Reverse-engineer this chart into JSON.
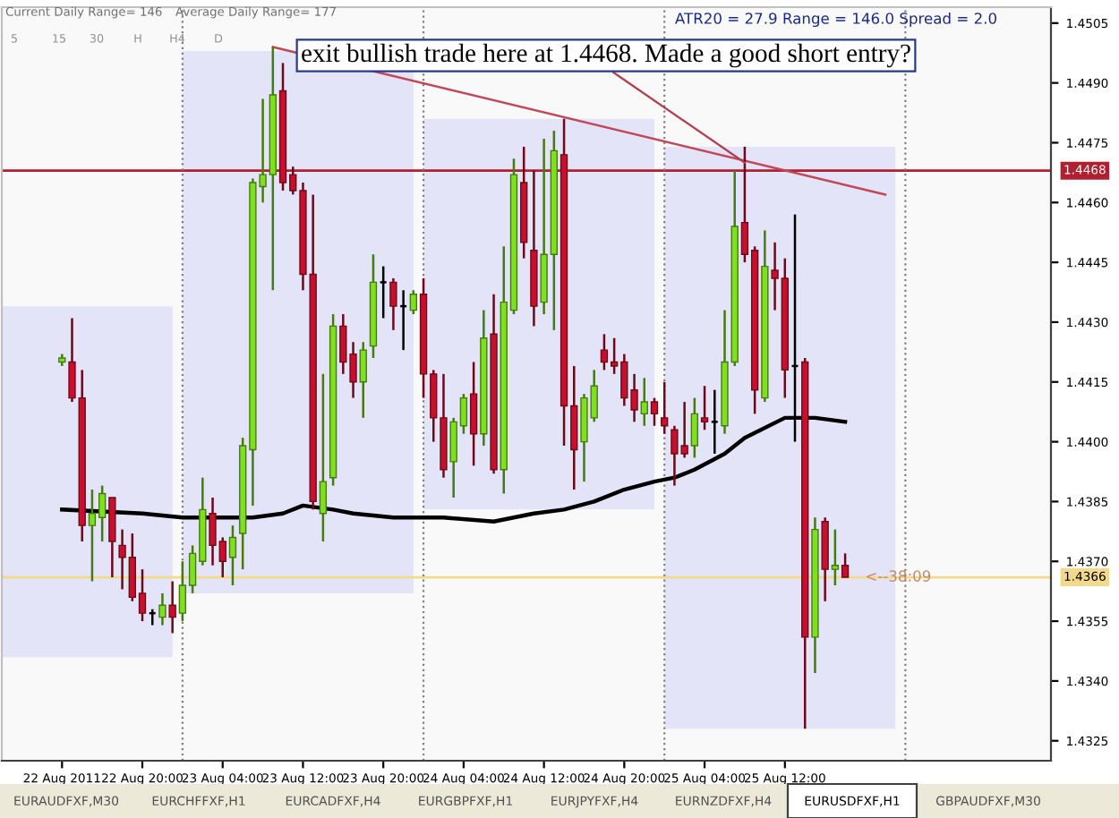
{
  "chart_data": {
    "type": "candlestick",
    "xlim": [
      "2011-08-22T06:00",
      "2011-08-26T14:30"
    ],
    "ylim": [
      1.432,
      1.4509
    ],
    "xticks": [
      {
        "value": "2011-08-22T12:00",
        "label": "22 Aug 2011"
      },
      {
        "value": "2011-08-22T20:00",
        "label": "22 Aug 20:00"
      },
      {
        "value": "2011-08-23T04:00",
        "label": "23 Aug 04:00"
      },
      {
        "value": "2011-08-23T12:00",
        "label": "23 Aug 12:00"
      },
      {
        "value": "2011-08-23T20:00",
        "label": "23 Aug 20:00"
      },
      {
        "value": "2011-08-24T04:00",
        "label": "24 Aug 04:00"
      },
      {
        "value": "2011-08-24T12:00",
        "label": "24 Aug 12:00"
      },
      {
        "value": "2011-08-24T20:00",
        "label": "24 Aug 20:00"
      },
      {
        "value": "2011-08-25T04:00",
        "label": "25 Aug 04:00"
      },
      {
        "value": "2011-08-25T12:00",
        "label": "25 Aug 12:00"
      }
    ],
    "yticks": [
      1.4505,
      {
        "value": 1.449,
        "label": "1.4490"
      },
      1.4475,
      {
        "value": 1.446,
        "label": "1.4460"
      },
      1.4445,
      {
        "value": 1.443,
        "label": "1.4430"
      },
      1.4415,
      {
        "value": 1.44,
        "label": "1.4400"
      },
      1.4385,
      {
        "value": 1.437,
        "label": "1.4370"
      },
      1.4355,
      {
        "value": 1.434,
        "label": "1.4340"
      },
      1.4325
    ],
    "series": [
      {
        "type": "bar",
        "x": [
          "2011-08-22T11:30",
          "2011-08-23T11:30",
          "2011-08-24T11:30",
          "2011-08-25T11:30"
        ],
        "base": [
          1.4346,
          1.4362,
          1.4383,
          1.4328
        ],
        "values": [
          0.0088,
          0.0136,
          0.0098,
          0.0146
        ],
        "color": "#e4e4f8"
      },
      {
        "x": [
          "2011-08-22T12:00",
          "2011-08-22T13:00",
          "2011-08-22T14:00",
          "2011-08-22T15:00",
          "2011-08-22T16:00",
          "2011-08-22T17:00",
          "2011-08-22T18:00",
          "2011-08-22T19:00",
          "2011-08-22T20:00",
          "2011-08-22T21:00",
          "2011-08-22T22:00",
          "2011-08-22T23:00",
          "2011-08-23T00:00",
          "2011-08-23T01:00",
          "2011-08-23T02:00",
          "2011-08-23T03:00",
          "2011-08-23T04:00",
          "2011-08-23T05:00",
          "2011-08-23T06:00",
          "2011-08-23T07:00",
          "2011-08-23T08:00",
          "2011-08-23T09:00",
          "2011-08-23T10:00",
          "2011-08-23T11:00",
          "2011-08-23T12:00",
          "2011-08-23T13:00",
          "2011-08-23T14:00",
          "2011-08-23T15:00",
          "2011-08-23T16:00",
          "2011-08-23T17:00",
          "2011-08-23T18:00",
          "2011-08-23T19:00",
          "2011-08-23T20:00",
          "2011-08-23T21:00",
          "2011-08-23T22:00",
          "2011-08-23T23:00",
          "2011-08-24T00:00",
          "2011-08-24T01:00",
          "2011-08-24T02:00",
          "2011-08-24T03:00",
          "2011-08-24T04:00",
          "2011-08-24T05:00",
          "2011-08-24T06:00",
          "2011-08-24T07:00",
          "2011-08-24T08:00",
          "2011-08-24T09:00",
          "2011-08-24T10:00",
          "2011-08-24T11:00",
          "2011-08-24T12:00",
          "2011-08-24T13:00",
          "2011-08-24T14:00",
          "2011-08-24T15:00",
          "2011-08-24T16:00",
          "2011-08-24T17:00",
          "2011-08-24T18:00",
          "2011-08-24T19:00",
          "2011-08-24T20:00",
          "2011-08-24T21:00",
          "2011-08-24T22:00",
          "2011-08-24T23:00",
          "2011-08-25T00:00",
          "2011-08-25T01:00",
          "2011-08-25T02:00",
          "2011-08-25T03:00",
          "2011-08-25T04:00",
          "2011-08-25T05:00",
          "2011-08-25T06:00",
          "2011-08-25T07:00",
          "2011-08-25T08:00",
          "2011-08-25T09:00",
          "2011-08-25T10:00",
          "2011-08-25T11:00",
          "2011-08-25T12:00",
          "2011-08-25T13:00",
          "2011-08-25T14:00",
          "2011-08-25T15:00",
          "2011-08-25T16:00",
          "2011-08-25T17:00",
          "2011-08-25T18:00"
        ],
        "ohlc": [
          [
            1.442,
            1.4422,
            1.4419,
            1.4421
          ],
          [
            1.442,
            1.4431,
            1.441,
            1.4411
          ],
          [
            1.4411,
            1.4418,
            1.4375,
            1.4379
          ],
          [
            1.4379,
            1.4388,
            1.4365,
            1.4382
          ],
          [
            1.4381,
            1.4389,
            1.4375,
            1.4387
          ],
          [
            1.4386,
            1.4386,
            1.4366,
            1.4375
          ],
          [
            1.4374,
            1.4378,
            1.4363,
            1.4371
          ],
          [
            1.4371,
            1.4377,
            1.436,
            1.4361
          ],
          [
            1.4362,
            1.4368,
            1.4355,
            1.4357
          ],
          [
            1.4357,
            1.4358,
            1.4354,
            1.4357
          ],
          [
            1.4356,
            1.4362,
            1.4354,
            1.4359
          ],
          [
            1.4359,
            1.4365,
            1.4352,
            1.4356
          ],
          [
            1.4357,
            1.437,
            1.4355,
            1.4364
          ],
          [
            1.4364,
            1.4374,
            1.4362,
            1.4372
          ],
          [
            1.437,
            1.4391,
            1.4369,
            1.4383
          ],
          [
            1.4382,
            1.4386,
            1.4369,
            1.4374
          ],
          [
            1.4375,
            1.4376,
            1.4366,
            1.437
          ],
          [
            1.4371,
            1.4379,
            1.4364,
            1.4376
          ],
          [
            1.4377,
            1.4401,
            1.4368,
            1.4399
          ],
          [
            1.4398,
            1.4466,
            1.4384,
            1.4465
          ],
          [
            1.4464,
            1.4486,
            1.446,
            1.4467
          ],
          [
            1.4467,
            1.4499,
            1.4438,
            1.4487
          ],
          [
            1.4488,
            1.4495,
            1.4463,
            1.4465
          ],
          [
            1.4467,
            1.4469,
            1.4462,
            1.4463
          ],
          [
            1.4463,
            1.4465,
            1.4438,
            1.4442
          ],
          [
            1.4442,
            1.4462,
            1.4383,
            1.4385
          ],
          [
            1.4382,
            1.4417,
            1.4375,
            1.439
          ],
          [
            1.4391,
            1.4432,
            1.4389,
            1.4429
          ],
          [
            1.4429,
            1.4432,
            1.4417,
            1.442
          ],
          [
            1.4422,
            1.4425,
            1.4411,
            1.4415
          ],
          [
            1.4415,
            1.4425,
            1.4406,
            1.4423
          ],
          [
            1.4424,
            1.4447,
            1.4421,
            1.444
          ],
          [
            1.444,
            1.4444,
            1.4431,
            1.444
          ],
          [
            1.444,
            1.4441,
            1.4428,
            1.4434
          ],
          [
            1.4434,
            1.4438,
            1.4423,
            1.4434
          ],
          [
            1.4433,
            1.4438,
            1.4432,
            1.4437
          ],
          [
            1.4437,
            1.4441,
            1.4411,
            1.4417
          ],
          [
            1.4417,
            1.4418,
            1.44,
            1.4406
          ],
          [
            1.4406,
            1.4417,
            1.4391,
            1.4393
          ],
          [
            1.4395,
            1.4406,
            1.4386,
            1.4405
          ],
          [
            1.4404,
            1.4412,
            1.4402,
            1.4411
          ],
          [
            1.4412,
            1.442,
            1.4394,
            1.4402
          ],
          [
            1.4402,
            1.4433,
            1.4399,
            1.4426
          ],
          [
            1.4427,
            1.4437,
            1.4392,
            1.4393
          ],
          [
            1.4393,
            1.4449,
            1.4387,
            1.4435
          ],
          [
            1.4433,
            1.4471,
            1.4432,
            1.4467
          ],
          [
            1.4465,
            1.4474,
            1.4446,
            1.445
          ],
          [
            1.4448,
            1.4468,
            1.4429,
            1.4434
          ],
          [
            1.4435,
            1.4476,
            1.4432,
            1.4447
          ],
          [
            1.4447,
            1.4478,
            1.4428,
            1.4473
          ],
          [
            1.4472,
            1.4481,
            1.4399,
            1.4409
          ],
          [
            1.4409,
            1.4419,
            1.4388,
            1.4398
          ],
          [
            1.44,
            1.4412,
            1.439,
            1.4411
          ],
          [
            1.4406,
            1.4418,
            1.4405,
            1.4414
          ],
          [
            1.4423,
            1.4427,
            1.4418,
            1.442
          ],
          [
            1.442,
            1.4426,
            1.4417,
            1.4419
          ],
          [
            1.442,
            1.4422,
            1.4409,
            1.4411
          ],
          [
            1.4413,
            1.4417,
            1.4405,
            1.4408
          ],
          [
            1.4407,
            1.4416,
            1.4404,
            1.441
          ],
          [
            1.441,
            1.4411,
            1.4404,
            1.4407
          ],
          [
            1.4406,
            1.4415,
            1.4402,
            1.4404
          ],
          [
            1.4403,
            1.4404,
            1.4389,
            1.4397
          ],
          [
            1.4399,
            1.441,
            1.4396,
            1.4397
          ],
          [
            1.4399,
            1.4411,
            1.4396,
            1.4407
          ],
          [
            1.4406,
            1.4414,
            1.4403,
            1.4405
          ],
          [
            1.4405,
            1.4413,
            1.4397,
            1.4405
          ],
          [
            1.4404,
            1.4433,
            1.4402,
            1.442
          ],
          [
            1.442,
            1.4468,
            1.4419,
            1.4454
          ],
          [
            1.4455,
            1.4474,
            1.4445,
            1.4447
          ],
          [
            1.4448,
            1.4449,
            1.4407,
            1.4413
          ],
          [
            1.4411,
            1.4453,
            1.441,
            1.4444
          ],
          [
            1.4443,
            1.445,
            1.4433,
            1.4441
          ],
          [
            1.4441,
            1.4446,
            1.4411,
            1.4418
          ],
          [
            1.4419,
            1.4457,
            1.44,
            1.4419
          ],
          [
            1.442,
            1.4421,
            1.4328,
            1.4351
          ],
          [
            1.4351,
            1.4381,
            1.4342,
            1.4378
          ],
          [
            1.438,
            1.4381,
            1.436,
            1.4368
          ],
          [
            1.4368,
            1.4378,
            1.4364,
            1.4369
          ],
          [
            1.4369,
            1.4372,
            1.4366,
            1.4366
          ]
        ],
        "colors": [
          "#7fe01f",
          "#c8102e",
          "#c8102e",
          "#7fe01f",
          "#7fe01f",
          "#c8102e",
          "#c8102e",
          "#c8102e",
          "#c8102e",
          "#000000",
          "#7fe01f",
          "#c8102e",
          "#7fe01f",
          "#7fe01f",
          "#7fe01f",
          "#c8102e",
          "#c8102e",
          "#7fe01f",
          "#7fe01f",
          "#7fe01f",
          "#7fe01f",
          "#7fe01f",
          "#c8102e",
          "#c8102e",
          "#c8102e",
          "#c8102e",
          "#7fe01f",
          "#7fe01f",
          "#c8102e",
          "#c8102e",
          "#7fe01f",
          "#7fe01f",
          "#000000",
          "#c8102e",
          "#000000",
          "#7fe01f",
          "#c8102e",
          "#c8102e",
          "#c8102e",
          "#7fe01f",
          "#7fe01f",
          "#c8102e",
          "#7fe01f",
          "#c8102e",
          "#7fe01f",
          "#7fe01f",
          "#c8102e",
          "#c8102e",
          "#7fe01f",
          "#7fe01f",
          "#c8102e",
          "#c8102e",
          "#7fe01f",
          "#7fe01f",
          "#c8102e",
          "#c8102e",
          "#c8102e",
          "#c8102e",
          "#7fe01f",
          "#c8102e",
          "#c8102e",
          "#c8102e",
          "#c8102e",
          "#7fe01f",
          "#c8102e",
          "#000000",
          "#7fe01f",
          "#7fe01f",
          "#c8102e",
          "#c8102e",
          "#7fe01f",
          "#c8102e",
          "#c8102e",
          "#000000",
          "#c8102e",
          "#7fe01f",
          "#c8102e",
          "#7fe01f",
          "#c8102e"
        ]
      },
      {
        "type": "line",
        "x": [
          "2011-08-22T12:00",
          "2011-08-22T20:00",
          "2011-08-23T00:00",
          "2011-08-23T05:00",
          "2011-08-23T07:00",
          "2011-08-23T10:00",
          "2011-08-23T12:00",
          "2011-08-23T15:00",
          "2011-08-23T17:00",
          "2011-08-23T21:00",
          "2011-08-24T02:00",
          "2011-08-24T07:00",
          "2011-08-24T11:00",
          "2011-08-24T14:00",
          "2011-08-24T17:00",
          "2011-08-24T20:00",
          "2011-08-24T23:00",
          "2011-08-25T01:00",
          "2011-08-25T03:00",
          "2011-08-25T06:00",
          "2011-08-25T08:00",
          "2011-08-25T12:00",
          "2011-08-25T13:00",
          "2011-08-25T15:00",
          "2011-08-25T18:00"
        ],
        "values": [
          1.4383,
          1.4382,
          1.4381,
          1.4381,
          1.4381,
          1.4382,
          1.4384,
          1.4383,
          1.4382,
          1.4381,
          1.4381,
          1.438,
          1.4382,
          1.4383,
          1.4385,
          1.4388,
          1.439,
          1.4391,
          1.4393,
          1.4397,
          1.4401,
          1.4406,
          1.4406,
          1.4406,
          1.4405
        ],
        "color": "#000000"
      },
      {
        "type": "line",
        "x": [
          "2011-08-23T09:00",
          "2011-08-25T22:00"
        ],
        "values": [
          1.4499,
          1.4462
        ],
        "color": "#c04858"
      }
    ],
    "ref_lines": [
      {
        "axis": "y",
        "value": 1.4468,
        "label": "1.4468",
        "color": "#b02030"
      },
      {
        "axis": "y",
        "value": 1.4366,
        "label": "1.4366",
        "color": "#f2d98c"
      },
      {
        "axis": "x",
        "value": "2011-08-23T00:00",
        "color": "#808080",
        "line_style": "dotted"
      },
      {
        "axis": "x",
        "value": "2011-08-24T00:00",
        "color": "#808080",
        "line_style": "dotted"
      },
      {
        "axis": "x",
        "value": "2011-08-25T00:00",
        "color": "#808080",
        "line_style": "dotted"
      },
      {
        "axis": "x",
        "value": "2011-08-26T00:00",
        "color": "#808080",
        "line_style": "dotted"
      }
    ],
    "annotations": [
      {
        "text": "exit bullish trade here at 1.4468. Made a good short entry?",
        "x": "2011-08-25T08:00",
        "y": 1.447
      },
      {
        "text": "<--38:09",
        "x": "2011-08-25T18:00",
        "y": 1.4366
      },
      "Current Daily Range= 146",
      "Average Daily Range= 177",
      "5",
      "15",
      "30",
      "H",
      "H4",
      "D",
      "ATR20 = 27.9 Range = 146.0 Spread = 2.0",
      "EURAUDFXF,M30",
      "EURCHFFXF,H1",
      "EURCADFXF,H4",
      "EURGBPFXF,H1",
      "EURJPYFXF,H4",
      "EURNZDFXF,H4",
      "EURUSDFXF,H1",
      "GBPAUDFXF,M30"
    ]
  }
}
